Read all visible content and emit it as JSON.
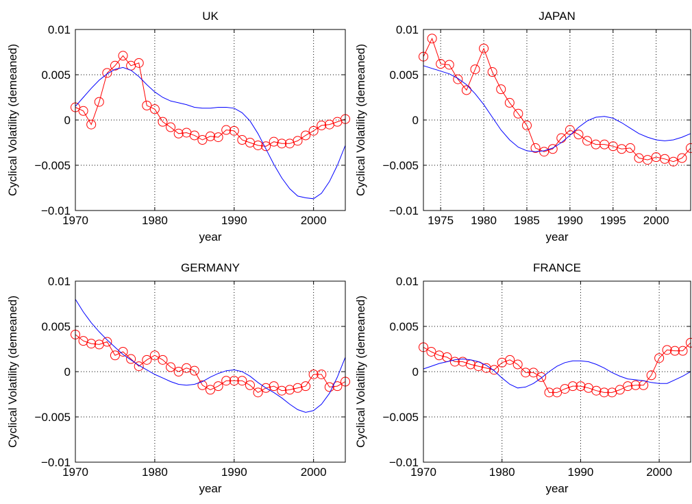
{
  "chart_data": [
    {
      "type": "line",
      "title": "UK",
      "xlabel": "year",
      "ylabel": "Cyclical Volatility (demeaned)",
      "xlim": [
        1970,
        2004
      ],
      "ylim": [
        -0.01,
        0.01
      ],
      "xticks": [
        1970,
        1980,
        1990,
        2000
      ],
      "xtick_labels": [
        "1970",
        "1980",
        "1990",
        "2000"
      ],
      "yticks": [
        -0.01,
        -0.005,
        0,
        0.005,
        0.01
      ],
      "ytick_labels": [
        "−0.01",
        "−0.005",
        "0",
        "0.005",
        "0.01"
      ],
      "grid": true,
      "series": [
        {
          "color": "#ff0000",
          "marker": "circle",
          "x": [
            1970,
            1971,
            1972,
            1973,
            1974,
            1975,
            1976,
            1977,
            1978,
            1979,
            1980,
            1981,
            1982,
            1983,
            1984,
            1985,
            1986,
            1987,
            1988,
            1989,
            1990,
            1991,
            1992,
            1993,
            1994,
            1995,
            1996,
            1997,
            1998,
            1999,
            2000,
            2001,
            2002,
            2003,
            2004
          ],
          "y": [
            0.0014,
            0.001,
            -0.0005,
            0.002,
            0.0052,
            0.006,
            0.0071,
            0.006,
            0.0063,
            0.0016,
            0.0012,
            -0.0002,
            -0.0008,
            -0.0015,
            -0.0014,
            -0.0017,
            -0.0022,
            -0.0018,
            -0.0019,
            -0.0011,
            -0.0012,
            -0.0022,
            -0.0025,
            -0.0028,
            -0.0029,
            -0.0024,
            -0.0026,
            -0.0026,
            -0.0023,
            -0.0017,
            -0.0012,
            -0.0006,
            -0.0005,
            -0.0002,
            0.0001
          ]
        },
        {
          "color": "#0000ff",
          "marker": "none",
          "x": [
            1970,
            1971,
            1972,
            1973,
            1974,
            1975,
            1976,
            1977,
            1978,
            1979,
            1980,
            1981,
            1982,
            1983,
            1984,
            1985,
            1986,
            1987,
            1988,
            1989,
            1990,
            1991,
            1992,
            1993,
            1994,
            1995,
            1996,
            1997,
            1998,
            1999,
            2000,
            2001,
            2002,
            2003,
            2004
          ],
          "y": [
            0.0015,
            0.0025,
            0.0035,
            0.0044,
            0.0051,
            0.0056,
            0.0058,
            0.0055,
            0.0048,
            0.0039,
            0.0031,
            0.0025,
            0.0021,
            0.0019,
            0.0017,
            0.0014,
            0.0013,
            0.0013,
            0.0014,
            0.0014,
            0.0013,
            0.0008,
            -0.0001,
            -0.0015,
            -0.0032,
            -0.0049,
            -0.0064,
            -0.0076,
            -0.0084,
            -0.0086,
            -0.0087,
            -0.0081,
            -0.0068,
            -0.005,
            -0.0028
          ]
        }
      ]
    },
    {
      "type": "line",
      "title": "JAPAN",
      "xlabel": "year",
      "ylabel": "Cyclical Volatility (demeaned)",
      "xlim": [
        1973,
        2004
      ],
      "ylim": [
        -0.01,
        0.01
      ],
      "xticks": [
        1975,
        1980,
        1985,
        1990,
        1995,
        2000
      ],
      "xtick_labels": [
        "1975",
        "1980",
        "1985",
        "1990",
        "1995",
        "2000"
      ],
      "yticks": [
        -0.01,
        -0.005,
        0,
        0.005,
        0.01
      ],
      "ytick_labels": [
        "−0.01",
        "−0.005",
        "0",
        "0.005",
        "0.01"
      ],
      "grid": true,
      "series": [
        {
          "color": "#ff0000",
          "marker": "circle",
          "x": [
            1973,
            1974,
            1975,
            1976,
            1977,
            1978,
            1979,
            1980,
            1981,
            1982,
            1983,
            1984,
            1985,
            1986,
            1987,
            1988,
            1989,
            1990,
            1991,
            1992,
            1993,
            1994,
            1995,
            1996,
            1997,
            1998,
            1999,
            2000,
            2001,
            2002,
            2003,
            2004
          ],
          "y": [
            0.007,
            0.009,
            0.0062,
            0.0061,
            0.0045,
            0.0033,
            0.0056,
            0.0079,
            0.0053,
            0.0034,
            0.0019,
            0.0007,
            -0.0006,
            -0.0031,
            -0.0035,
            -0.0032,
            -0.002,
            -0.0011,
            -0.0016,
            -0.0023,
            -0.0027,
            -0.0027,
            -0.0029,
            -0.0032,
            -0.0031,
            -0.0042,
            -0.0044,
            -0.0041,
            -0.0043,
            -0.0046,
            -0.0042,
            -0.0031
          ]
        },
        {
          "color": "#0000ff",
          "marker": "none",
          "x": [
            1973,
            1974,
            1975,
            1976,
            1977,
            1978,
            1979,
            1980,
            1981,
            1982,
            1983,
            1984,
            1985,
            1986,
            1987,
            1988,
            1989,
            1990,
            1991,
            1992,
            1993,
            1994,
            1995,
            1996,
            1997,
            1998,
            1999,
            2000,
            2001,
            2002,
            2003,
            2004
          ],
          "y": [
            0.006,
            0.0057,
            0.0054,
            0.0051,
            0.0046,
            0.0039,
            0.0029,
            0.0017,
            0.0003,
            -0.0011,
            -0.0022,
            -0.003,
            -0.0034,
            -0.0035,
            -0.0034,
            -0.0031,
            -0.0025,
            -0.0017,
            -0.0008,
            -0.0001,
            0.0003,
            0.0004,
            0.0002,
            -0.0003,
            -0.0009,
            -0.0015,
            -0.0019,
            -0.0022,
            -0.0023,
            -0.0022,
            -0.0019,
            -0.0015
          ]
        }
      ]
    },
    {
      "type": "line",
      "title": "GERMANY",
      "xlabel": "year",
      "ylabel": "Cyclical Volatility (demeaned)",
      "xlim": [
        1970,
        2004
      ],
      "ylim": [
        -0.01,
        0.01
      ],
      "xticks": [
        1970,
        1980,
        1990,
        2000
      ],
      "xtick_labels": [
        "1970",
        "1980",
        "1990",
        "2000"
      ],
      "yticks": [
        -0.01,
        -0.005,
        0,
        0.005,
        0.01
      ],
      "ytick_labels": [
        "−0.01",
        "−0.005",
        "0",
        "0.005",
        "0.01"
      ],
      "grid": true,
      "series": [
        {
          "color": "#ff0000",
          "marker": "circle",
          "x": [
            1970,
            1971,
            1972,
            1973,
            1974,
            1975,
            1976,
            1977,
            1978,
            1979,
            1980,
            1981,
            1982,
            1983,
            1984,
            1985,
            1986,
            1987,
            1988,
            1989,
            1990,
            1991,
            1992,
            1993,
            1994,
            1995,
            1996,
            1997,
            1998,
            1999,
            2000,
            2001,
            2002,
            2003,
            2004
          ],
          "y": [
            0.0041,
            0.0034,
            0.0031,
            0.003,
            0.0033,
            0.0018,
            0.0022,
            0.0014,
            0.0006,
            0.0013,
            0.0018,
            0.0013,
            0.0005,
            0.0,
            0.0004,
            0.0001,
            -0.0015,
            -0.002,
            -0.0016,
            -0.001,
            -0.001,
            -0.001,
            -0.0015,
            -0.0023,
            -0.0018,
            -0.0016,
            -0.0021,
            -0.002,
            -0.0018,
            -0.0016,
            -0.0003,
            -0.0003,
            -0.0017,
            -0.0016,
            -0.0011
          ]
        },
        {
          "color": "#0000ff",
          "marker": "none",
          "x": [
            1970,
            1971,
            1972,
            1973,
            1974,
            1975,
            1976,
            1977,
            1978,
            1979,
            1980,
            1981,
            1982,
            1983,
            1984,
            1985,
            1986,
            1987,
            1988,
            1989,
            1990,
            1991,
            1992,
            1993,
            1994,
            1995,
            1996,
            1997,
            1998,
            1999,
            2000,
            2001,
            2002,
            2003,
            2004
          ],
          "y": [
            0.008,
            0.0066,
            0.0054,
            0.0044,
            0.0035,
            0.0027,
            0.0019,
            0.0013,
            0.0007,
            0.0002,
            -0.0003,
            -0.0007,
            -0.0011,
            -0.0014,
            -0.0015,
            -0.0014,
            -0.0011,
            -0.0006,
            -0.0002,
            0.0001,
            0.0002,
            0.0,
            -0.0005,
            -0.0012,
            -0.0018,
            -0.0023,
            -0.0029,
            -0.0036,
            -0.0042,
            -0.0045,
            -0.0043,
            -0.0036,
            -0.0024,
            -0.0006,
            0.0016
          ]
        }
      ]
    },
    {
      "type": "line",
      "title": "FRANCE",
      "xlabel": "year",
      "ylabel": "Cyclical Volatility (demeaned)",
      "xlim": [
        1970,
        2004
      ],
      "ylim": [
        -0.01,
        0.01
      ],
      "xticks": [
        1970,
        1980,
        1990,
        2000
      ],
      "xtick_labels": [
        "1970",
        "1980",
        "1990",
        "2000"
      ],
      "yticks": [
        -0.01,
        -0.005,
        0,
        0.005,
        0.01
      ],
      "ytick_labels": [
        "−0.01",
        "−0.005",
        "0",
        "0.005",
        "0.01"
      ],
      "grid": true,
      "series": [
        {
          "color": "#ff0000",
          "marker": "circle",
          "x": [
            1970,
            1971,
            1972,
            1973,
            1974,
            1975,
            1976,
            1977,
            1978,
            1979,
            1980,
            1981,
            1982,
            1983,
            1984,
            1985,
            1986,
            1987,
            1988,
            1989,
            1990,
            1991,
            1992,
            1993,
            1994,
            1995,
            1996,
            1997,
            1998,
            1999,
            2000,
            2001,
            2002,
            2003,
            2004
          ],
          "y": [
            0.0027,
            0.0022,
            0.0018,
            0.0016,
            0.0011,
            0.0011,
            0.0008,
            0.0006,
            0.0004,
            0.0002,
            0.001,
            0.0013,
            0.0008,
            -0.0001,
            -0.0001,
            -0.0006,
            -0.0023,
            -0.0023,
            -0.0019,
            -0.0016,
            -0.0016,
            -0.0018,
            -0.0021,
            -0.0023,
            -0.0023,
            -0.002,
            -0.0016,
            -0.0015,
            -0.0015,
            -0.0004,
            0.0015,
            0.0024,
            0.0023,
            0.0023,
            0.0032
          ]
        },
        {
          "color": "#0000ff",
          "marker": "none",
          "x": [
            1970,
            1971,
            1972,
            1973,
            1974,
            1975,
            1976,
            1977,
            1978,
            1979,
            1980,
            1981,
            1982,
            1983,
            1984,
            1985,
            1986,
            1987,
            1988,
            1989,
            1990,
            1991,
            1992,
            1993,
            1994,
            1995,
            1996,
            1997,
            1998,
            1999,
            2000,
            2001,
            2002,
            2003,
            2004
          ],
          "y": [
            0.0003,
            0.0006,
            0.0009,
            0.0011,
            0.0013,
            0.0014,
            0.0013,
            0.0011,
            0.0007,
            0.0001,
            -0.0007,
            -0.0014,
            -0.0018,
            -0.0017,
            -0.0013,
            -0.0007,
            0.0,
            0.0006,
            0.001,
            0.0012,
            0.0012,
            0.0011,
            0.0008,
            0.0004,
            -0.0001,
            -0.0005,
            -0.0008,
            -0.0009,
            -0.001,
            -0.0012,
            -0.0013,
            -0.0013,
            -0.0009,
            -0.0005,
            0.0
          ]
        }
      ]
    }
  ]
}
